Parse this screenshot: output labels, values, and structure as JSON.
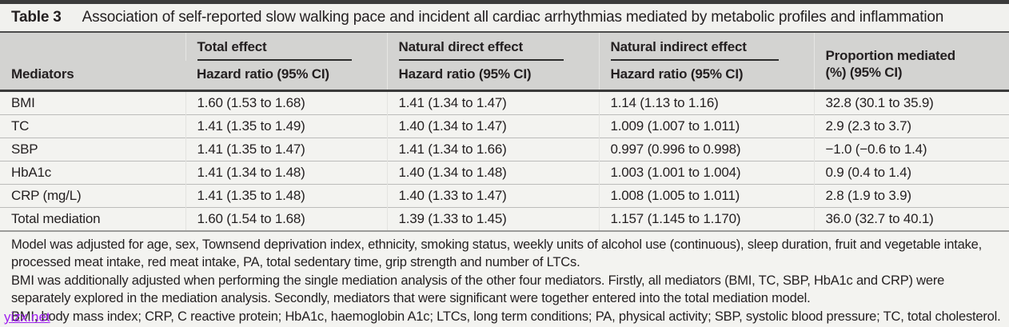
{
  "title": {
    "label": "Table 3",
    "text": "Association of self-reported slow walking pace and incident all cardiac arrhythmias mediated by metabolic profiles and inflammation"
  },
  "table": {
    "col1_header": "Mediators",
    "group_headers": {
      "total": "Total effect",
      "direct": "Natural direct effect",
      "indirect": "Natural indirect effect"
    },
    "sub_header": "Hazard ratio (95% CI)",
    "proportion_header": {
      "line1": "Proportion mediated",
      "line2": "(%) (95% CI)"
    },
    "rows": [
      {
        "mediator": "BMI",
        "total": "1.60 (1.53 to 1.68)",
        "direct": "1.41 (1.34 to 1.47)",
        "indirect": "1.14 (1.13 to 1.16)",
        "proportion": "32.8 (30.1 to 35.9)"
      },
      {
        "mediator": "TC",
        "total": "1.41 (1.35 to 1.49)",
        "direct": "1.40 (1.34 to 1.47)",
        "indirect": "1.009 (1.007 to 1.011)",
        "proportion": "2.9 (2.3 to 3.7)"
      },
      {
        "mediator": "SBP",
        "total": "1.41 (1.35 to 1.47)",
        "direct": "1.41 (1.34 to 1.66)",
        "indirect": "0.997 (0.996 to 0.998)",
        "proportion": "−1.0 (−0.6 to 1.4)"
      },
      {
        "mediator": "HbA1c",
        "total": "1.41 (1.34 to 1.48)",
        "direct": "1.40 (1.34 to 1.48)",
        "indirect": "1.003 (1.001 to 1.004)",
        "proportion": "0.9 (0.4 to 1.4)"
      },
      {
        "mediator": "CRP (mg/L)",
        "total": "1.41 (1.35 to 1.48)",
        "direct": "1.40 (1.33 to 1.47)",
        "indirect": "1.008 (1.005 to 1.011)",
        "proportion": "2.8 (1.9 to 3.9)"
      },
      {
        "mediator": "Total mediation",
        "total": "1.60 (1.54 to 1.68)",
        "direct": "1.39 (1.33 to 1.45)",
        "indirect": "1.157 (1.145 to 1.170)",
        "proportion": "36.0 (32.7 to 40.1)"
      }
    ]
  },
  "footnotes": [
    "Model was adjusted for age, sex, Townsend deprivation index, ethnicity, smoking status, weekly units of alcohol use (continuous), sleep duration, fruit and vegetable intake, processed meat intake, red meat intake, PA, total sedentary time, grip strength and number of LTCs.",
    "BMI was additionally adjusted when performing the single mediation analysis of the other four mediators. Firstly, all mediators (BMI, TC, SBP, HbA1c and CRP) were separately explored in the mediation analysis. Secondly, mediators that were significant were together entered into the total mediation model.",
    "BMI, body mass index; CRP, C reactive protein; HbA1c, haemoglobin A1c; LTCs, long term conditions; PA, physical activity; SBP, systolic blood pressure; TC, total cholesterol."
  ],
  "watermark": "yizx.net",
  "colors": {
    "top_rule": "#3b3b3b",
    "title_background": "#f1f1ee",
    "header_background": "#d3d3d1",
    "row_background": "#f3f3f0",
    "text": "#231f20",
    "watermark": "#a020f0"
  }
}
